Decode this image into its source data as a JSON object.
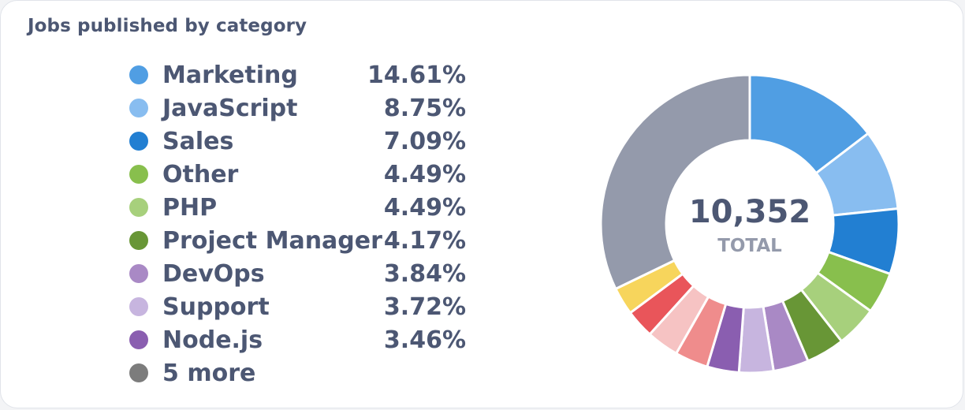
{
  "card": {
    "title": "Jobs published by category"
  },
  "chart_data": {
    "type": "pie",
    "variant": "donut",
    "title": "Jobs published by category",
    "total": {
      "value": "10,352",
      "label": "TOTAL"
    },
    "slices": [
      {
        "label": "Marketing",
        "value": 14.61,
        "display": "14.61%",
        "color": "#509ee3"
      },
      {
        "label": "JavaScript",
        "value": 8.75,
        "display": "8.75%",
        "color": "#88bdf0"
      },
      {
        "label": "Sales",
        "value": 7.09,
        "display": "7.09%",
        "color": "#227fd2"
      },
      {
        "label": "Other",
        "value": 4.49,
        "display": "4.49%",
        "color": "#88bf4d"
      },
      {
        "label": "PHP",
        "value": 4.49,
        "display": "4.49%",
        "color": "#a7d07c"
      },
      {
        "label": "Project Manager",
        "value": 4.17,
        "display": "4.17%",
        "color": "#689636"
      },
      {
        "label": "DevOps",
        "value": 3.84,
        "display": "3.84%",
        "color": "#a989c5"
      },
      {
        "label": "Support",
        "value": 3.72,
        "display": "3.72%",
        "color": "#c7b5df"
      },
      {
        "label": "Node.js",
        "value": 3.46,
        "display": "3.46%",
        "color": "#8a5eb0"
      },
      {
        "label": "",
        "value": 3.6,
        "color": "#ef8c8c"
      },
      {
        "label": "",
        "value": 3.5,
        "color": "#f6c3c3"
      },
      {
        "label": "",
        "value": 3.1,
        "color": "#e9555a"
      },
      {
        "label": "",
        "value": 3.0,
        "color": "#f7d55c"
      },
      {
        "label": "",
        "value": 32.18,
        "color": "#949aab"
      }
    ],
    "legend": {
      "placement": "left",
      "items": [
        {
          "label": "Marketing",
          "value": "14.61%",
          "color": "#509ee3"
        },
        {
          "label": "JavaScript",
          "value": "8.75%",
          "color": "#88bdf0"
        },
        {
          "label": "Sales",
          "value": "7.09%",
          "color": "#227fd2"
        },
        {
          "label": "Other",
          "value": "4.49%",
          "color": "#88bf4d"
        },
        {
          "label": "PHP",
          "value": "4.49%",
          "color": "#a7d07c"
        },
        {
          "label": "Project Manager",
          "value": "4.17%",
          "color": "#689636"
        },
        {
          "label": "DevOps",
          "value": "3.84%",
          "color": "#a989c5"
        },
        {
          "label": "Support",
          "value": "3.72%",
          "color": "#c7b5df"
        },
        {
          "label": "Node.js",
          "value": "3.46%",
          "color": "#8a5eb0"
        },
        {
          "label": "5 more",
          "value": "",
          "color": "#7c7c7c"
        }
      ]
    }
  }
}
